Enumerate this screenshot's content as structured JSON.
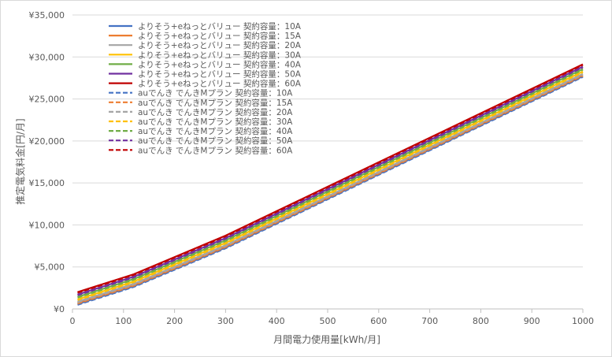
{
  "chart_data": {
    "type": "line",
    "xlabel": "月間電力使用量[kWh/月]",
    "ylabel": "推定電気料金[円/月]",
    "xlim": [
      0,
      1000
    ],
    "ylim": [
      0,
      35000
    ],
    "x_ticks": [
      "0",
      "100",
      "200",
      "300",
      "400",
      "500",
      "600",
      "700",
      "800",
      "900",
      "1000"
    ],
    "y_ticks": [
      "¥0",
      "¥5,000",
      "¥10,000",
      "¥15,000",
      "¥20,000",
      "¥25,000",
      "¥30,000",
      "¥35,000"
    ],
    "grid": "horizontal",
    "legend_position": "top-left",
    "x": [
      10,
      120,
      300,
      1000
    ],
    "series": [
      {
        "name": "よりそう+eねっとバリュー 契約容量：10A",
        "color": "#4472C4",
        "dash": false,
        "values": [
          570,
          2700,
          7300,
          27700
        ]
      },
      {
        "name": "よりそう+eねっとバリュー 契約容量：15A",
        "color": "#ED7D31",
        "dash": false,
        "values": [
          710,
          2840,
          7440,
          27840
        ]
      },
      {
        "name": "よりそう+eねっとバリュー 契約容量：20A",
        "color": "#A5A5A5",
        "dash": false,
        "values": [
          860,
          2990,
          7590,
          27990
        ]
      },
      {
        "name": "よりそう+eねっとバリュー 契約容量：30A",
        "color": "#FFC000",
        "dash": false,
        "values": [
          1140,
          3270,
          7870,
          28270
        ]
      },
      {
        "name": "よりそう+eねっとバリュー 契約容量：40A",
        "color": "#70AD47",
        "dash": false,
        "values": [
          1430,
          3560,
          8160,
          28560
        ]
      },
      {
        "name": "よりそう+eねっとバリュー 契約容量：50A",
        "color": "#7030A0",
        "dash": false,
        "values": [
          1710,
          3840,
          8440,
          28840
        ]
      },
      {
        "name": "よりそう+eねっとバリュー 契約容量：60A",
        "color": "#C00000",
        "dash": false,
        "values": [
          2000,
          4130,
          8730,
          29130
        ]
      },
      {
        "name": "auでんき でんきMプラン 契約容量：10A",
        "color": "#4472C4",
        "dash": true,
        "values": [
          490,
          2620,
          7220,
          27620
        ]
      },
      {
        "name": "auでんき でんきMプラン 契約容量：15A",
        "color": "#ED7D31",
        "dash": true,
        "values": [
          630,
          2760,
          7360,
          27760
        ]
      },
      {
        "name": "auでんき でんきMプラン 契約容量：20A",
        "color": "#A5A5A5",
        "dash": true,
        "values": [
          780,
          2910,
          7510,
          27910
        ]
      },
      {
        "name": "auでんき でんきMプラン 契約容量：30A",
        "color": "#FFC000",
        "dash": true,
        "values": [
          1060,
          3190,
          7790,
          28190
        ]
      },
      {
        "name": "auでんき でんきMプラン 契約容量：40A",
        "color": "#70AD47",
        "dash": true,
        "values": [
          1350,
          3480,
          8080,
          28480
        ]
      },
      {
        "name": "auでんき でんきMプラン 契約容量：50A",
        "color": "#7030A0",
        "dash": true,
        "values": [
          1630,
          3760,
          8360,
          28760
        ]
      },
      {
        "name": "auでんき でんきMプラン 契約容量：60A",
        "color": "#C00000",
        "dash": true,
        "values": [
          1920,
          4050,
          8650,
          29050
        ]
      }
    ]
  }
}
